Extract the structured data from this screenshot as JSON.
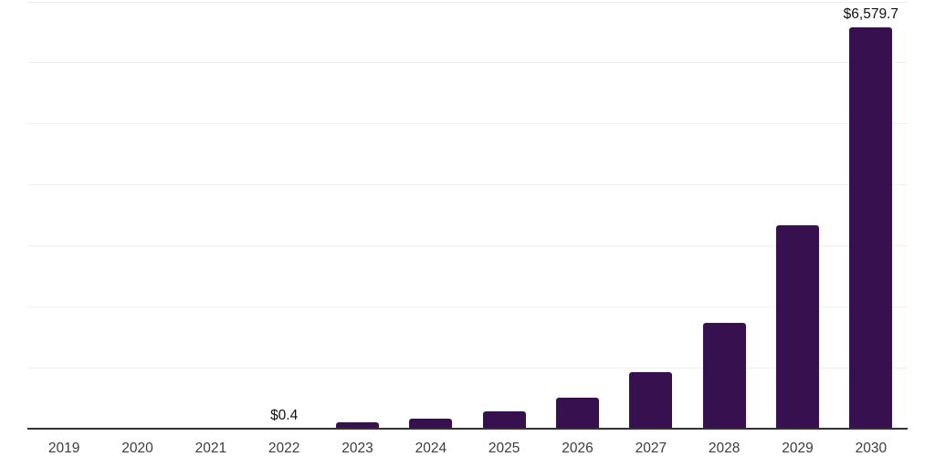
{
  "chart_data": {
    "type": "bar",
    "title": "",
    "xlabel": "",
    "ylabel": "",
    "categories": [
      "2019",
      "2020",
      "2021",
      "2022",
      "2023",
      "2024",
      "2025",
      "2026",
      "2027",
      "2028",
      "2029",
      "2030"
    ],
    "values": [
      0,
      0,
      0,
      0.4,
      105,
      170,
      290,
      510,
      930,
      1730,
      3330,
      6579.7
    ],
    "data_labels": [
      {
        "category": "2022",
        "text": "$0.4"
      },
      {
        "category": "2030",
        "text": "$6,579.7"
      }
    ],
    "ylim": [
      0,
      7000
    ],
    "gridline_step": 1000,
    "grid": true,
    "legend": false,
    "colors": {
      "bar_fill": "#37114F",
      "axis_line": "#333333",
      "gridline": "#f0f0f0",
      "tick_label": "#3c3c3c",
      "data_label": "#111111",
      "background": "#ffffff"
    }
  }
}
